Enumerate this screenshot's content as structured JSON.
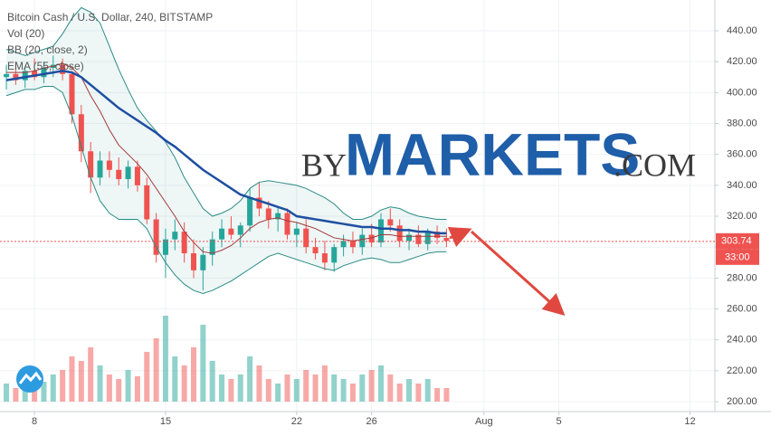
{
  "chart_data": {
    "type": "candlestick",
    "title": "Bitcoin Cash / U.S. Dollar, 240, BITSTAMP",
    "indicators": [
      "Vol (20)",
      "BB (20, close, 2)",
      "EMA (55, close)"
    ],
    "watermark": {
      "prefix": "BY",
      "brand": "MARKETS",
      "suffix": ".COM"
    },
    "x": [
      6.5,
      7,
      7.5,
      8,
      8.5,
      9,
      9.5,
      10,
      10.5,
      11,
      11.5,
      12,
      12.5,
      13,
      13.5,
      14,
      14.5,
      15,
      15.5,
      16,
      16.5,
      17,
      17.5,
      18,
      18.5,
      19,
      19.5,
      20,
      20.5,
      21,
      21.5,
      22,
      22.5,
      23,
      23.5,
      24,
      24.5,
      25,
      25.5,
      26,
      26.5,
      27,
      27.5,
      28,
      28.5,
      29,
      29.5,
      30
    ],
    "candles": [
      [
        410,
        418,
        402,
        412
      ],
      [
        412,
        420,
        405,
        408
      ],
      [
        408,
        416,
        403,
        414
      ],
      [
        414,
        422,
        408,
        410
      ],
      [
        410,
        420,
        406,
        416
      ],
      [
        416,
        424,
        410,
        418
      ],
      [
        418,
        422,
        408,
        412
      ],
      [
        412,
        414,
        380,
        386
      ],
      [
        386,
        392,
        355,
        362
      ],
      [
        362,
        368,
        335,
        345
      ],
      [
        345,
        362,
        340,
        356
      ],
      [
        356,
        362,
        345,
        350
      ],
      [
        350,
        358,
        340,
        344
      ],
      [
        344,
        356,
        338,
        352
      ],
      [
        352,
        356,
        336,
        340
      ],
      [
        340,
        345,
        315,
        318
      ],
      [
        318,
        322,
        290,
        295
      ],
      [
        295,
        312,
        280,
        305
      ],
      [
        305,
        318,
        298,
        310
      ],
      [
        310,
        316,
        290,
        296
      ],
      [
        296,
        305,
        280,
        285
      ],
      [
        285,
        300,
        272,
        295
      ],
      [
        295,
        310,
        288,
        305
      ],
      [
        305,
        318,
        300,
        312
      ],
      [
        312,
        320,
        305,
        308
      ],
      [
        308,
        316,
        300,
        314
      ],
      [
        314,
        338,
        310,
        332
      ],
      [
        332,
        342,
        320,
        325
      ],
      [
        325,
        330,
        312,
        318
      ],
      [
        318,
        326,
        310,
        322
      ],
      [
        322,
        325,
        305,
        308
      ],
      [
        308,
        316,
        300,
        312
      ],
      [
        312,
        318,
        296,
        300
      ],
      [
        300,
        306,
        292,
        296
      ],
      [
        296,
        304,
        285,
        290
      ],
      [
        290,
        302,
        284,
        300
      ],
      [
        300,
        308,
        294,
        304
      ],
      [
        304,
        310,
        296,
        300
      ],
      [
        300,
        312,
        295,
        308
      ],
      [
        308,
        315,
        300,
        303
      ],
      [
        303,
        322,
        300,
        318
      ],
      [
        318,
        325,
        310,
        314
      ],
      [
        314,
        318,
        300,
        304
      ],
      [
        304,
        312,
        298,
        308
      ],
      [
        308,
        314,
        300,
        302
      ],
      [
        302,
        312,
        298,
        310
      ],
      [
        310,
        314,
        302,
        306
      ],
      [
        306,
        312,
        300,
        304
      ]
    ],
    "volume": [
      20,
      15,
      25,
      18,
      22,
      30,
      35,
      50,
      45,
      60,
      40,
      30,
      25,
      35,
      28,
      55,
      70,
      95,
      50,
      40,
      60,
      85,
      45,
      30,
      25,
      30,
      50,
      40,
      25,
      20,
      30,
      25,
      35,
      30,
      40,
      30,
      25,
      20,
      30,
      35,
      40,
      30,
      20,
      25,
      20,
      25,
      15,
      15
    ],
    "ema": [
      408,
      409,
      410,
      411,
      412,
      413,
      414,
      413,
      410,
      405,
      400,
      395,
      390,
      386,
      382,
      378,
      374,
      369,
      365,
      360,
      355,
      350,
      346,
      342,
      338,
      334,
      332,
      330,
      328,
      326,
      324,
      320,
      319,
      318,
      317,
      316,
      315,
      314,
      313,
      313,
      312,
      312,
      311,
      311,
      310,
      310,
      309,
      309
    ],
    "bb_upper": [
      428,
      426,
      424,
      426,
      428,
      430,
      438,
      448,
      455,
      452,
      445,
      430,
      415,
      402,
      390,
      382,
      375,
      368,
      358,
      345,
      335,
      325,
      320,
      322,
      325,
      330,
      338,
      342,
      343,
      342,
      341,
      340,
      338,
      335,
      332,
      328,
      322,
      318,
      318,
      320,
      324,
      326,
      325,
      322,
      320,
      319,
      318,
      318
    ],
    "bb_lower": [
      398,
      400,
      402,
      402,
      404,
      404,
      400,
      385,
      365,
      345,
      330,
      322,
      318,
      318,
      318,
      312,
      300,
      290,
      282,
      276,
      272,
      270,
      272,
      275,
      278,
      282,
      286,
      290,
      294,
      296,
      294,
      292,
      290,
      288,
      286,
      285,
      288,
      290,
      292,
      293,
      292,
      290,
      290,
      292,
      294,
      296,
      297,
      297
    ],
    "bb_basis": [
      413,
      413,
      413,
      414,
      416,
      417,
      419,
      416,
      410,
      398,
      388,
      376,
      366,
      360,
      354,
      347,
      338,
      329,
      320,
      310,
      303,
      297,
      296,
      298,
      301,
      306,
      312,
      316,
      318,
      319,
      317,
      316,
      314,
      312,
      309,
      306,
      305,
      304,
      305,
      306,
      308,
      308,
      307,
      307,
      307,
      307,
      307,
      307
    ],
    "up_color": "#26a69a",
    "down_color": "#ef5350",
    "ema_color": "#1e4fa0",
    "bb_color": "#2a8c86",
    "basis_color": "#a33a3a",
    "last_price": 303.74,
    "countdown": "33:00",
    "xlim": [
      6.16,
      44.33
    ],
    "xticks": [
      8,
      15,
      22,
      26,
      {
        "value": 32,
        "label": "Aug"
      },
      {
        "value": 36,
        "label": "5"
      },
      {
        "value": 43,
        "label": "12"
      }
    ],
    "ylim": [
      193.6,
      459.9
    ],
    "yticks": [
      {
        "value": 200,
        "label": "200.00"
      },
      {
        "value": 220,
        "label": "220.00"
      },
      {
        "value": 240,
        "label": "240.00"
      },
      {
        "value": 260,
        "label": "260.00"
      },
      {
        "value": 280,
        "label": "280.00"
      },
      {
        "value": 300,
        "label": "300.00"
      },
      {
        "value": 320,
        "label": "320.00"
      },
      {
        "value": 340,
        "label": "340.00"
      },
      {
        "value": 360,
        "label": "360.00"
      },
      {
        "value": 380,
        "label": "380.00"
      },
      {
        "value": 400,
        "label": "400.00"
      },
      {
        "value": 420,
        "label": "420.00"
      },
      {
        "value": 440,
        "label": "440.00"
      }
    ],
    "grid": true
  }
}
